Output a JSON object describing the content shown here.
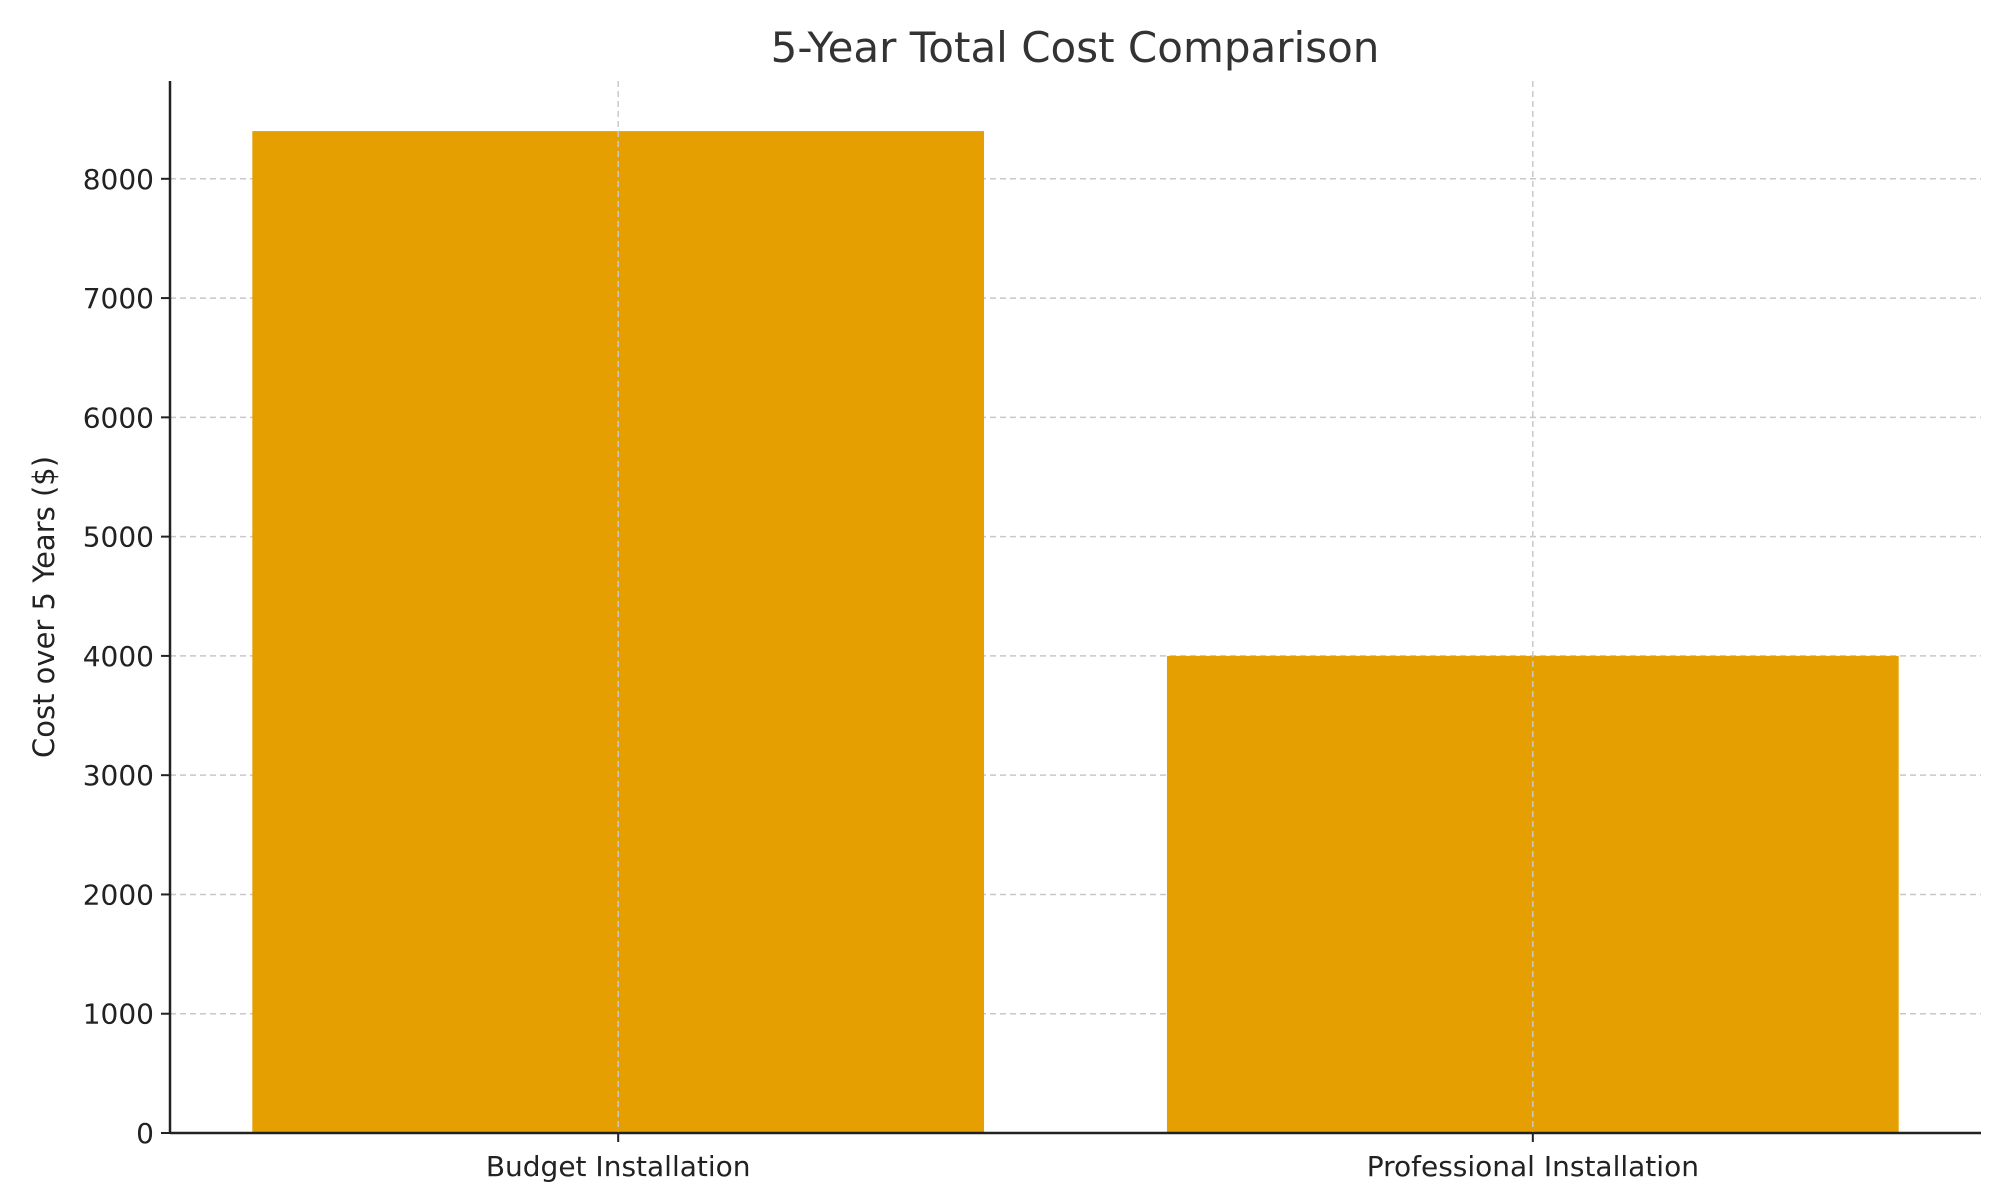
{
  "chart_data": {
    "type": "bar",
    "title": "5-Year Total Cost Comparison",
    "xlabel": "",
    "ylabel": "Cost over 5 Years ($)",
    "categories": [
      "Budget Installation",
      "Professional Installation"
    ],
    "values": [
      8400,
      4000
    ],
    "ylim": [
      0,
      8820
    ],
    "yticks": [
      0,
      1000,
      2000,
      3000,
      4000,
      5000,
      6000,
      7000,
      8000
    ],
    "grid": true,
    "bar_color": "#E69F00"
  }
}
